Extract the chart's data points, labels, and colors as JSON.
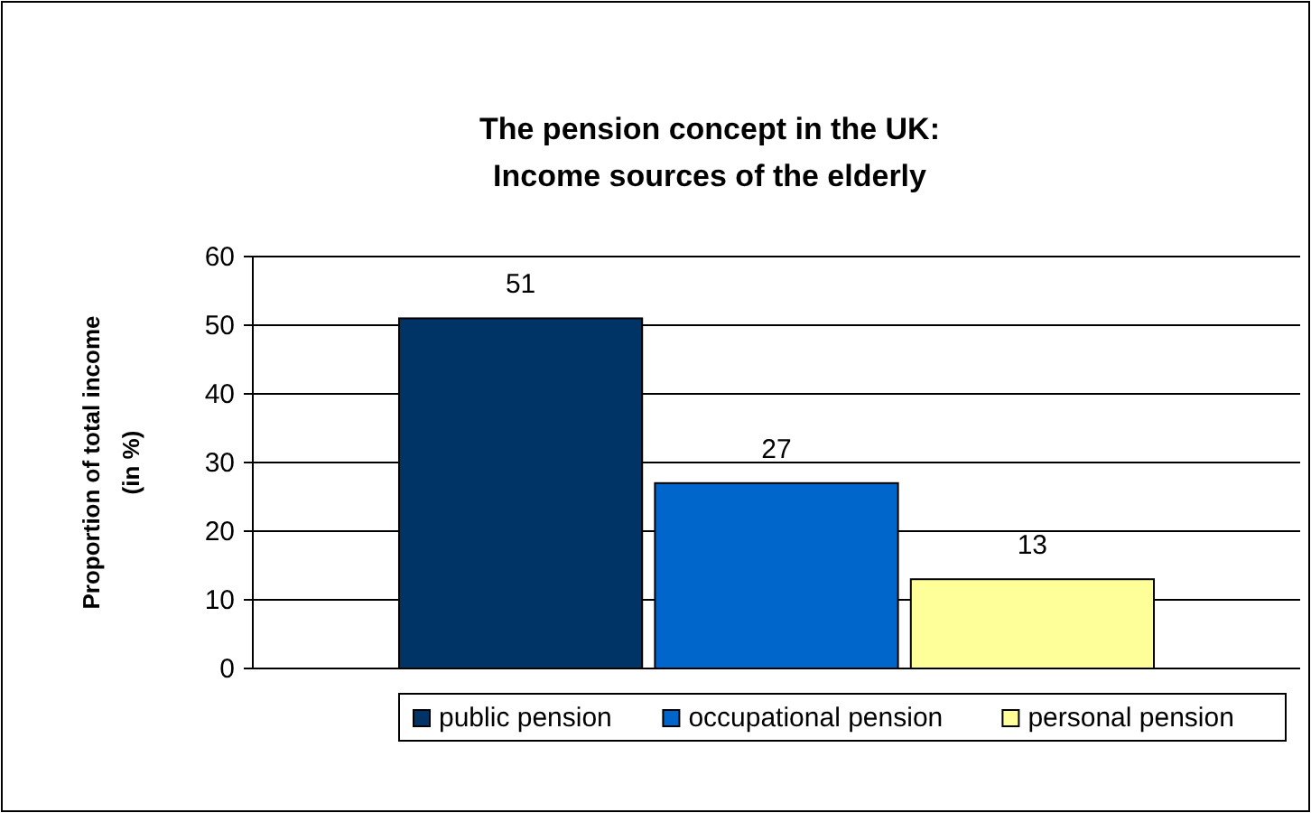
{
  "chart_data": {
    "type": "bar",
    "title": "The pension concept in the UK:\nIncome sources of the elderly",
    "ylabel": "Proportion of total income\n(in %)",
    "categories": [
      null
    ],
    "series": [
      {
        "name": "public pension",
        "color": "#003366",
        "values": [
          51
        ]
      },
      {
        "name": "occupational pension",
        "color": "#0066cc",
        "values": [
          27
        ]
      },
      {
        "name": "personal pension",
        "color": "#ffff99",
        "values": [
          13
        ]
      }
    ],
    "ylim": [
      0,
      60
    ],
    "yticks": [
      0,
      10,
      20,
      30,
      40,
      50,
      60
    ],
    "grid": "y",
    "legend": "bottom",
    "data_labels": true
  }
}
